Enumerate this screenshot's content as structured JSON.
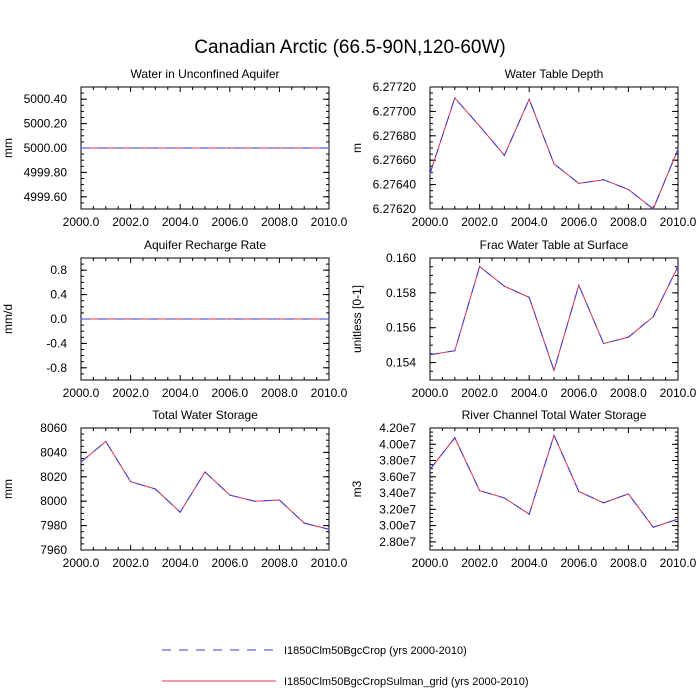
{
  "title": "Canadian Arctic (66.5-90N,120-60W)",
  "colors": {
    "case1": "#3a3ad6",
    "case2": "#e0304a"
  },
  "legend": {
    "placement": "bottom",
    "entries": [
      {
        "label": "I1850Clm50BgcCrop (yrs 2000-2010)",
        "color": "#3a3ad6",
        "style": "dashed"
      },
      {
        "label": "I1850Clm50BgcCropSulman_grid (yrs 2000-2010)",
        "color": "#e0304a",
        "style": "solid"
      }
    ]
  },
  "chart_data": [
    {
      "type": "line",
      "title": "Water in Unconfined Aquifer",
      "xlabel": "",
      "ylabel": "mm",
      "xlim": [
        2000,
        2010
      ],
      "ylim": [
        4999.5,
        5000.5
      ],
      "xticks": [
        2000,
        2002,
        2004,
        2006,
        2008,
        2010
      ],
      "xtick_labels": [
        "2000.0",
        "2002.0",
        "2004.0",
        "2006.0",
        "2008.0",
        "2010.0"
      ],
      "yticks": [
        4999.6,
        4999.8,
        5000.0,
        5000.2,
        5000.4
      ],
      "ytick_labels": [
        "4999.60",
        "4999.80",
        "5000.00",
        "5000.20",
        "5000.40"
      ],
      "x": [
        2000,
        2001,
        2002,
        2003,
        2004,
        2005,
        2006,
        2007,
        2008,
        2009,
        2010
      ],
      "series": [
        {
          "values": [
            5000,
            5000,
            5000,
            5000,
            5000,
            5000,
            5000,
            5000,
            5000,
            5000,
            5000
          ]
        }
      ]
    },
    {
      "type": "line",
      "title": "Water Table Depth",
      "xlabel": "",
      "ylabel": "m",
      "xlim": [
        2000,
        2010
      ],
      "ylim": [
        6.2762,
        6.2772
      ],
      "xticks": [
        2000,
        2002,
        2004,
        2006,
        2008,
        2010
      ],
      "xtick_labels": [
        "2000.0",
        "2002.0",
        "2004.0",
        "2006.0",
        "2008.0",
        "2010.0"
      ],
      "yticks": [
        6.2762,
        6.2764,
        6.2766,
        6.2768,
        6.277,
        6.2772
      ],
      "ytick_labels": [
        "6.27620",
        "6.27640",
        "6.27660",
        "6.27680",
        "6.27700",
        "6.27720"
      ],
      "x": [
        2000,
        2001,
        2002,
        2003,
        2004,
        2005,
        2006,
        2007,
        2008,
        2009,
        2010
      ],
      "series": [
        {
          "values": [
            6.27649,
            6.27711,
            6.27688,
            6.27664,
            6.2771,
            6.27657,
            6.27641,
            6.27644,
            6.27636,
            6.2762,
            6.27669
          ]
        }
      ]
    },
    {
      "type": "line",
      "title": "Aquifer Recharge Rate",
      "xlabel": "",
      "ylabel": "mm/d",
      "xlim": [
        2000,
        2010
      ],
      "ylim": [
        -1.0,
        1.0
      ],
      "xticks": [
        2000,
        2002,
        2004,
        2006,
        2008,
        2010
      ],
      "xtick_labels": [
        "2000.0",
        "2002.0",
        "2004.0",
        "2006.0",
        "2008.0",
        "2010.0"
      ],
      "yticks": [
        -0.8,
        -0.4,
        0.0,
        0.4,
        0.8
      ],
      "ytick_labels": [
        "-0.8",
        "-0.4",
        "0.0",
        "0.4",
        "0.8"
      ],
      "x": [
        2000,
        2001,
        2002,
        2003,
        2004,
        2005,
        2006,
        2007,
        2008,
        2009,
        2010
      ],
      "series": [
        {
          "values": [
            0,
            0,
            0,
            0,
            0,
            0,
            0,
            0,
            0,
            0,
            0
          ]
        }
      ]
    },
    {
      "type": "line",
      "title": "Frac Water Table at Surface",
      "xlabel": "",
      "ylabel": "unitless [0-1]",
      "xlim": [
        2000,
        2010
      ],
      "ylim": [
        0.153,
        0.16
      ],
      "xticks": [
        2000,
        2002,
        2004,
        2006,
        2008,
        2010
      ],
      "xtick_labels": [
        "2000.0",
        "2002.0",
        "2004.0",
        "2006.0",
        "2008.0",
        "2010.0"
      ],
      "yticks": [
        0.154,
        0.156,
        0.158,
        0.16
      ],
      "ytick_labels": [
        "0.154",
        "0.156",
        "0.158",
        "0.160"
      ],
      "x": [
        2000,
        2001,
        2002,
        2003,
        2004,
        2005,
        2006,
        2007,
        2008,
        2009,
        2010
      ],
      "series": [
        {
          "values": [
            0.15445,
            0.15468,
            0.15951,
            0.15838,
            0.15774,
            0.15355,
            0.15844,
            0.15509,
            0.15546,
            0.15663,
            0.15952
          ]
        }
      ]
    },
    {
      "type": "line",
      "title": "Total Water Storage",
      "xlabel": "",
      "ylabel": "mm",
      "xlim": [
        2000,
        2010
      ],
      "ylim": [
        7960,
        8060
      ],
      "xticks": [
        2000,
        2002,
        2004,
        2006,
        2008,
        2010
      ],
      "xtick_labels": [
        "2000.0",
        "2002.0",
        "2004.0",
        "2006.0",
        "2008.0",
        "2010.0"
      ],
      "yticks": [
        7960,
        7980,
        8000,
        8020,
        8040,
        8060
      ],
      "ytick_labels": [
        "7960",
        "7980",
        "8000",
        "8020",
        "8040",
        "8060"
      ],
      "x": [
        2000,
        2001,
        2002,
        2003,
        2004,
        2005,
        2006,
        2007,
        2008,
        2009,
        2010
      ],
      "series": [
        {
          "values": [
            8032,
            8049,
            8016,
            8010,
            7991,
            8024,
            8005,
            8000,
            8001,
            7982,
            7977
          ]
        }
      ]
    },
    {
      "type": "line",
      "title": "River Channel Total Water Storage",
      "xlabel": "",
      "ylabel": "m3",
      "xlim": [
        2000,
        2010
      ],
      "ylim": [
        27000000,
        42000000
      ],
      "xticks": [
        2000,
        2002,
        2004,
        2006,
        2008,
        2010
      ],
      "xtick_labels": [
        "2000.0",
        "2002.0",
        "2004.0",
        "2006.0",
        "2008.0",
        "2010.0"
      ],
      "yticks": [
        28000000,
        30000000,
        32000000,
        34000000,
        36000000,
        38000000,
        40000000,
        42000000
      ],
      "ytick_labels": [
        "2.80e7",
        "3.00e7",
        "3.20e7",
        "3.40e7",
        "3.60e7",
        "3.80e7",
        "4.00e7",
        "4.20e7"
      ],
      "x": [
        2000,
        2001,
        2002,
        2003,
        2004,
        2005,
        2006,
        2007,
        2008,
        2009,
        2010
      ],
      "series": [
        {
          "values": [
            36900000,
            40800000,
            34300000,
            33400000,
            31400000,
            41100000,
            34200000,
            32800000,
            33900000,
            29800000,
            30800000
          ]
        }
      ]
    }
  ]
}
